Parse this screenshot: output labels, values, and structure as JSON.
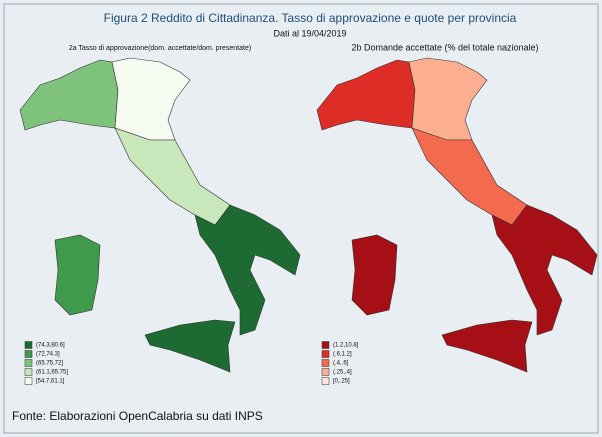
{
  "title": "Figura 2 Reddito di Cittadinanza. Tasso di approvazione e quote per provincia",
  "subtitle": "Dati al 19/04/2019",
  "maps": [
    {
      "title": "2a Tasso di approvazione(dom. accettate/dom. presentate)",
      "legend": [
        {
          "label": "(74.3,80.6]",
          "color": "#1d6b33"
        },
        {
          "label": "(72,74.3]",
          "color": "#3f9a4c"
        },
        {
          "label": "(65.75,72]",
          "color": "#7fc27c"
        },
        {
          "label": "(61.1,65.75]",
          "color": "#c8e7ba"
        },
        {
          "label": "[54.7,61.1]",
          "color": "#f6fbf1"
        }
      ]
    },
    {
      "title": "2b Domande accettate (% del totale nazionale)",
      "legend": [
        {
          "label": "(1.2,10.8]",
          "color": "#a50f15"
        },
        {
          "label": "(.6,1.2]",
          "color": "#de2d26"
        },
        {
          "label": "(.4,.6]",
          "color": "#f46a4e"
        },
        {
          "label": "(.25,.4]",
          "color": "#fcae91"
        },
        {
          "label": "[0,.25]",
          "color": "#fee5d9"
        }
      ]
    }
  ],
  "source": "Fonte: Elaborazioni OpenCalabria su dati INPS"
}
